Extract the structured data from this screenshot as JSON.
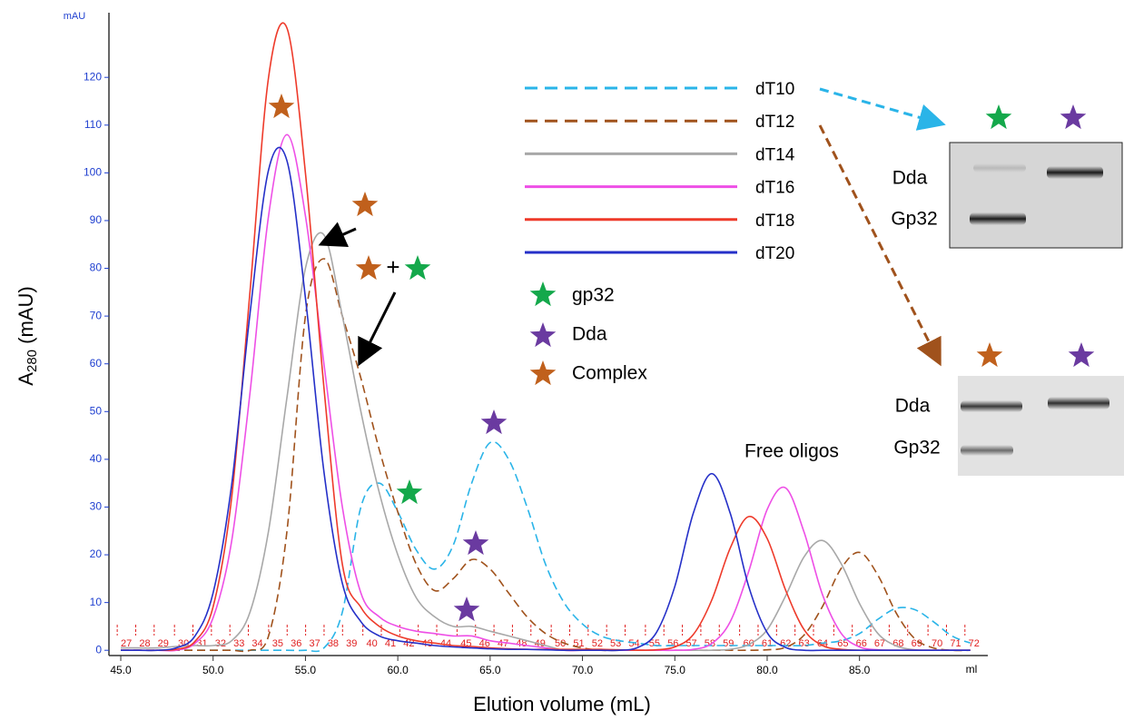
{
  "chart_data": {
    "type": "line",
    "y_label": {
      "main": "A",
      "sub": "280",
      "rest": " (mAU)"
    },
    "x_label": "Elution volume (mL)",
    "y_unit": "mAU",
    "x_unit": "ml",
    "xlim": [
      44.36,
      91.8
    ],
    "ylim": [
      -1.1,
      132.4
    ],
    "xticks": [
      {
        "value": 45,
        "label": "45.0"
      },
      {
        "value": 50,
        "label": "50.0"
      },
      {
        "value": 55,
        "label": "55.0"
      },
      {
        "value": 60,
        "label": "60.0"
      },
      {
        "value": 65,
        "label": "65.0"
      },
      {
        "value": 70,
        "label": "70.0"
      },
      {
        "value": 75,
        "label": "75.0"
      },
      {
        "value": 80,
        "label": "80.0"
      },
      {
        "value": 85,
        "label": "85.0"
      }
    ],
    "yticks": [
      0,
      10,
      20,
      30,
      40,
      50,
      60,
      70,
      80,
      90,
      100,
      110,
      120
    ],
    "x": [
      45,
      46,
      47,
      48,
      49,
      50,
      51,
      52,
      53,
      54,
      55,
      56,
      57,
      58,
      59,
      60,
      61,
      62,
      63,
      64,
      65,
      66,
      67,
      68,
      69,
      70,
      71,
      72,
      73,
      74,
      75,
      76,
      77,
      78,
      79,
      80,
      81,
      82,
      83,
      84,
      85,
      86,
      87,
      88,
      89,
      90,
      91
    ],
    "series": [
      {
        "name": "dT10",
        "color": "#2ab4e8",
        "style": "dashed",
        "values": [
          0,
          0,
          0,
          0,
          0,
          0,
          0,
          0,
          0,
          0,
          0,
          0.5,
          8,
          30,
          35,
          29,
          21,
          17,
          22,
          35,
          43.5,
          40,
          30,
          18,
          10,
          5.5,
          3,
          2,
          1.5,
          1,
          1,
          1,
          1,
          1,
          1,
          1,
          1,
          1,
          1.5,
          2,
          3.5,
          6.5,
          8.8,
          8.5,
          6,
          3,
          1.5
        ]
      },
      {
        "name": "dT12",
        "color": "#a0521c",
        "style": "dashed",
        "values": [
          0,
          0,
          0,
          0,
          0,
          0,
          0,
          0,
          3,
          25,
          70,
          82,
          70,
          57,
          42,
          29,
          18,
          12.5,
          15,
          19,
          17,
          12,
          7,
          3.5,
          1.5,
          0.5,
          0,
          0,
          0,
          0,
          0,
          0,
          0,
          0,
          0,
          0.1,
          0.6,
          3.2,
          9.2,
          17.1,
          20.5,
          15.7,
          7.7,
          2.4,
          0.5,
          0,
          0
        ]
      },
      {
        "name": "dT14",
        "color": "#a8a8a8",
        "style": "solid",
        "values": [
          0.5,
          0.5,
          0.5,
          0.8,
          1,
          1,
          2,
          8,
          25,
          53,
          80,
          87,
          70,
          50,
          33,
          20,
          11,
          7,
          5,
          5,
          4,
          3,
          2,
          1,
          0,
          0,
          0,
          0,
          0,
          0,
          0,
          0,
          0,
          0.2,
          1.2,
          4.3,
          11.4,
          19.6,
          23,
          18.2,
          9.8,
          3.5,
          0.9,
          0.1,
          0,
          0,
          0
        ]
      },
      {
        "name": "dT16",
        "color": "#ee4fe6",
        "style": "solid",
        "values": [
          0,
          0,
          0,
          0,
          1.4,
          6.8,
          22.8,
          54,
          91,
          108,
          91,
          60,
          30,
          12,
          7,
          5,
          4,
          3.5,
          3,
          3,
          2,
          1.5,
          1,
          0.5,
          0,
          0,
          0,
          0,
          0,
          0,
          0,
          0.2,
          1.4,
          6,
          16.5,
          29.5,
          34,
          24.7,
          11.6,
          3.6,
          0.7,
          0.1,
          0,
          0,
          0,
          0,
          0
        ]
      },
      {
        "name": "dT18",
        "color": "#ee3a2a",
        "style": "solid",
        "values": [
          0,
          0,
          0,
          0.2,
          1.8,
          9.1,
          31.9,
          75.2,
          120,
          130.3,
          100,
          55,
          18,
          9,
          5,
          3,
          2,
          1.5,
          1,
          0.8,
          0.5,
          0.3,
          0.2,
          0.2,
          0.2,
          0.2,
          0.2,
          0.1,
          0,
          0.1,
          0.7,
          3.3,
          10.5,
          21.4,
          28,
          23.4,
          12.6,
          4.3,
          1,
          0.2,
          0,
          0,
          0,
          0,
          0,
          0,
          0
        ]
      },
      {
        "name": "dT20",
        "color": "#2530c8",
        "style": "solid",
        "values": [
          0,
          0,
          0,
          0.5,
          2.9,
          12,
          34.6,
          70.6,
          100.6,
          102.5,
          73.8,
          37.4,
          14,
          6,
          3,
          2,
          1.5,
          1,
          0.7,
          0.5,
          0.3,
          0.2,
          0.2,
          0.1,
          0,
          0,
          0,
          0,
          0.6,
          3.7,
          13.4,
          28.7,
          37,
          28.7,
          13.4,
          3.7,
          0.6,
          0,
          0,
          0,
          0,
          0,
          0,
          0,
          0,
          0,
          0
        ]
      }
    ],
    "fractions": {
      "labels": [
        "27",
        "28",
        "29",
        "30",
        "31",
        "32",
        "33",
        "34",
        "35",
        "36",
        "37",
        "38",
        "39",
        "40",
        "41",
        "42",
        "43",
        "44",
        "45",
        "46",
        "47",
        "48",
        "49",
        "50",
        "51",
        "52",
        "53",
        "54",
        "55",
        "56",
        "57",
        "58",
        "59",
        "60",
        "61",
        "62",
        "63",
        "64",
        "65",
        "66",
        "67",
        "68",
        "69",
        "70",
        "71",
        "72"
      ],
      "x": [
        45.3,
        46.3,
        47.3,
        48.4,
        49.4,
        50.4,
        51.4,
        52.4,
        53.5,
        54.5,
        55.5,
        56.5,
        57.5,
        58.6,
        59.6,
        60.6,
        61.6,
        62.6,
        63.7,
        64.7,
        65.7,
        66.7,
        67.7,
        68.8,
        69.8,
        70.8,
        71.8,
        72.8,
        73.9,
        74.9,
        75.9,
        76.9,
        77.9,
        79.0,
        80.0,
        81.0,
        82.0,
        83.0,
        84.1,
        85.1,
        86.1,
        87.1,
        88.1,
        89.2,
        90.2,
        91.2
      ]
    },
    "star_legend": [
      {
        "label": "gp32",
        "color": "#14a84b"
      },
      {
        "label": "Dda",
        "color": "#6a3aa0"
      },
      {
        "label": "Complex",
        "color": "#c0601c"
      }
    ],
    "plus_sign": "+",
    "free_oligos": "Free oligos",
    "gels": [
      {
        "labels": [
          "Dda",
          "Gp32"
        ]
      },
      {
        "labels": [
          "Dda",
          "Gp32"
        ]
      }
    ]
  }
}
